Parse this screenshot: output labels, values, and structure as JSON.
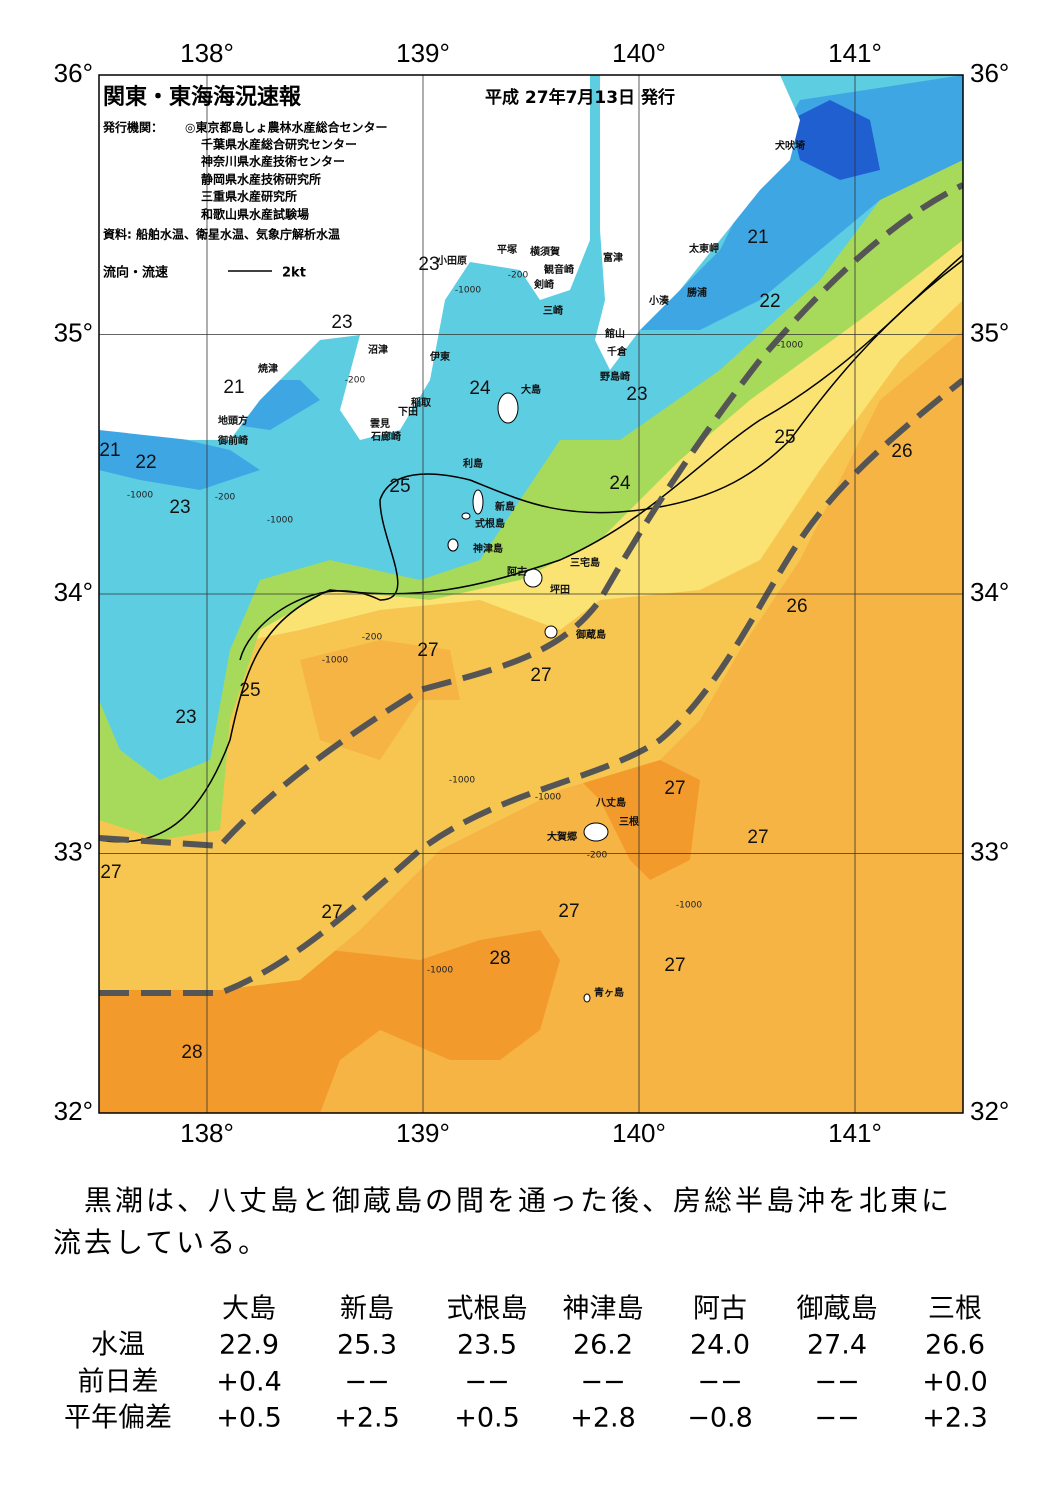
{
  "header": {
    "title": "関東・東海海況速報",
    "date": "平成 27年7月13日 発行",
    "issuer_label": "発行機関：",
    "issuers": [
      "◎東京都島しょ農林水産総合センター",
      "千葉県水産総合研究センター",
      "神奈川県水産技術センター",
      "静岡県水産技術研究所",
      "三重県水産研究所",
      "和歌山県水産試験場"
    ],
    "source": "資料: 船舶水温、衛星水温、気象庁解析水温",
    "legend_label": "流向・流速",
    "legend_speed": "2kt"
  },
  "map": {
    "lon_lim": [
      137.5,
      141.5
    ],
    "lat_lim": [
      32,
      36
    ],
    "lon_ticks": [
      {
        "value": 138,
        "label": "138°"
      },
      {
        "value": 139,
        "label": "139°"
      },
      {
        "value": 140,
        "label": "140°"
      },
      {
        "value": 141,
        "label": "141°"
      }
    ],
    "lat_ticks": [
      {
        "value": 32,
        "label": "32°"
      },
      {
        "value": 33,
        "label": "33°"
      },
      {
        "value": 34,
        "label": "34°"
      },
      {
        "value": 35,
        "label": "35°"
      },
      {
        "value": 36,
        "label": "36°"
      }
    ],
    "contour_labels": [
      "21",
      "22",
      "23",
      "24",
      "25",
      "26",
      "24",
      "25",
      "23",
      "23",
      "21",
      "21",
      "22",
      "23",
      "27",
      "27",
      "26",
      "25",
      "23",
      "27",
      "27",
      "27",
      "27",
      "27",
      "28",
      "27",
      "28"
    ],
    "depth_labels": [
      "-200",
      "-1000",
      "-200",
      "-1000",
      "-200",
      "-1000",
      "-200",
      "-1000",
      "-1000",
      "-1000",
      "-1000",
      "-200",
      "-1000",
      "-1000"
    ],
    "places": [
      "犬吠埼",
      "太東岬",
      "富津",
      "勝浦",
      "小湊",
      "平塚",
      "横須賀",
      "観音崎",
      "剣崎",
      "三崎",
      "小田原",
      "館山",
      "千倉",
      "野島崎",
      "沼津",
      "伊東",
      "焼津",
      "大島",
      "稲取",
      "下田",
      "雲見",
      "石廊崎",
      "地頭方",
      "御前崎",
      "利島",
      "新島",
      "式根島",
      "神津島",
      "三宅島",
      "阿古",
      "坪田",
      "御蔵島",
      "八丈島",
      "三根",
      "大賀郷",
      "青ヶ島"
    ]
  },
  "comment": [
    "　黒潮は、八丈島と御蔵島の間を通った後、房総半島沖を北東に",
    "流去している。"
  ],
  "table": {
    "columns": [
      "大島",
      "新島",
      "式根島",
      "神津島",
      "阿古",
      "御蔵島",
      "三根"
    ],
    "rows": [
      {
        "label": "水温",
        "cells": [
          "22.9",
          "25.3",
          "23.5",
          "26.2",
          "24.0",
          "27.4",
          "26.6"
        ]
      },
      {
        "label": "前日差",
        "cells": [
          "+0.4",
          "−−",
          "−−",
          "−−",
          "−−",
          "−−",
          "+0.0"
        ]
      },
      {
        "label": "平年偏差",
        "cells": [
          "+0.5",
          "+2.5",
          "+0.5",
          "+2.8",
          "−0.8",
          "−−",
          "+2.3"
        ]
      }
    ]
  }
}
